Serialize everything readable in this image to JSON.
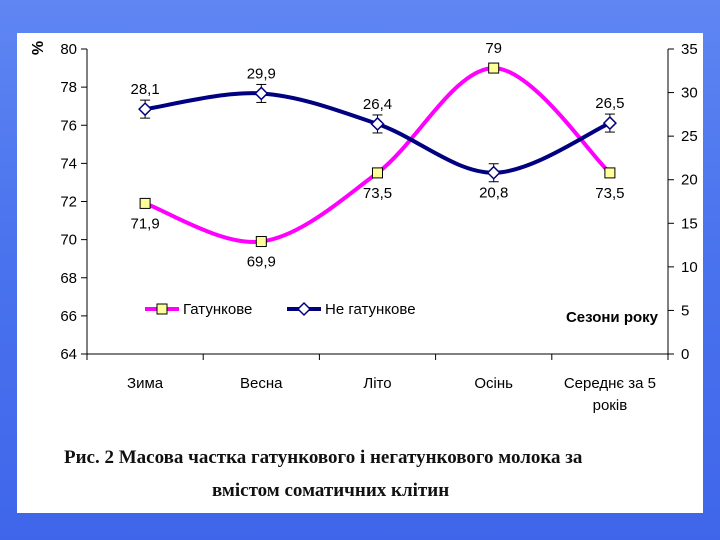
{
  "chart_data": {
    "type": "line",
    "categories": [
      "Зима",
      "Весна",
      "Літо",
      "Осінь",
      "Середнє за 5 років"
    ],
    "category_lines": [
      [
        "Зима"
      ],
      [
        "Весна"
      ],
      [
        "Літо"
      ],
      [
        "Осінь"
      ],
      [
        "Середнє за 5",
        "років"
      ]
    ],
    "series": [
      {
        "name": "Гатункове",
        "axis": "left",
        "values": [
          71.9,
          69.9,
          73.5,
          79,
          73.5
        ],
        "labels": [
          "71,9",
          "69,9",
          "73,5",
          "79",
          "73,5"
        ],
        "color": "#ff00ff",
        "marker": "square",
        "marker_fill": "#ffff99"
      },
      {
        "name": "Не гатункове",
        "axis": "right",
        "values": [
          28.1,
          29.9,
          26.4,
          20.8,
          26.5
        ],
        "labels": [
          "28,1",
          "29,9",
          "26,4",
          "20,8",
          "26,5"
        ],
        "color": "#000080",
        "marker": "diamond",
        "marker_fill": "#ffffff",
        "error_bars": true
      }
    ],
    "y_left": {
      "label": "%",
      "ylim": [
        64,
        80
      ],
      "ticks": [
        64,
        66,
        68,
        70,
        72,
        74,
        76,
        78,
        80
      ]
    },
    "y_right": {
      "ylim": [
        0,
        35
      ],
      "ticks": [
        0,
        5,
        10,
        15,
        20,
        25,
        30,
        35
      ]
    },
    "xlabel": "Сезони року",
    "legend": {
      "placement": "bottom-left inside plot"
    },
    "grid": false
  },
  "caption": {
    "line1": "Рис. 2  Масова частка гатункового і негатункового молока за",
    "line2": "вмістом соматичних клітин"
  },
  "colors": {
    "background": "#4a73ee",
    "panel": "#ffffff"
  }
}
